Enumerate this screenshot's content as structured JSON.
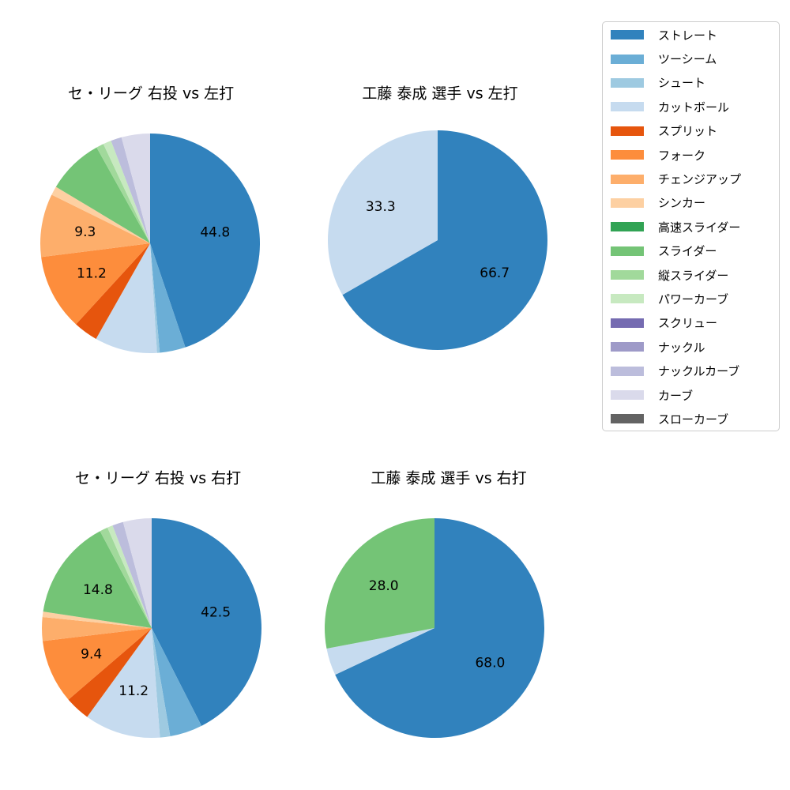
{
  "figure": {
    "background_color": "#ffffff",
    "text_color": "#000000"
  },
  "legend": {
    "position": "top-right",
    "border_color": "#cccccc",
    "items": [
      {
        "label": "ストレート",
        "color": "#3182bd"
      },
      {
        "label": "ツーシーム",
        "color": "#6baed6"
      },
      {
        "label": "シュート",
        "color": "#9ecae1"
      },
      {
        "label": "カットボール",
        "color": "#c6dbef"
      },
      {
        "label": "スプリット",
        "color": "#e6550d"
      },
      {
        "label": "フォーク",
        "color": "#fd8d3c"
      },
      {
        "label": "チェンジアップ",
        "color": "#fdae6b"
      },
      {
        "label": "シンカー",
        "color": "#fdd0a2"
      },
      {
        "label": "高速スライダー",
        "color": "#31a354"
      },
      {
        "label": "スライダー",
        "color": "#74c476"
      },
      {
        "label": "縦スライダー",
        "color": "#a1d99b"
      },
      {
        "label": "パワーカーブ",
        "color": "#c7e9c0"
      },
      {
        "label": "スクリュー",
        "color": "#756bb1"
      },
      {
        "label": "ナックル",
        "color": "#9e9ac8"
      },
      {
        "label": "ナックルカーブ",
        "color": "#bcbddc"
      },
      {
        "label": "カーブ",
        "color": "#dadaeb"
      },
      {
        "label": "スローカーブ",
        "color": "#636363"
      }
    ]
  },
  "chart_data": [
    {
      "type": "pie",
      "title": "セ・リーグ 右投 vs 左打",
      "start_angle_deg": 0,
      "direction": "clockwise",
      "pct_label_distance": 0.6,
      "slices": [
        {
          "pitch": "ストレート",
          "value": 44.8,
          "label": "44.8"
        },
        {
          "pitch": "ツーシーム",
          "value": 3.8,
          "label": null
        },
        {
          "pitch": "シュート",
          "value": 0.4,
          "label": null
        },
        {
          "pitch": "カットボール",
          "value": 9.2,
          "label": null
        },
        {
          "pitch": "スプリット",
          "value": 3.6,
          "label": null
        },
        {
          "pitch": "フォーク",
          "value": 11.2,
          "label": "11.2"
        },
        {
          "pitch": "チェンジアップ",
          "value": 9.3,
          "label": "9.3"
        },
        {
          "pitch": "シンカー",
          "value": 1.3,
          "label": null
        },
        {
          "pitch": "スライダー",
          "value": 8.3,
          "label": null
        },
        {
          "pitch": "縦スライダー",
          "value": 1.1,
          "label": null
        },
        {
          "pitch": "パワーカーブ",
          "value": 1.2,
          "label": null
        },
        {
          "pitch": "ナックルカーブ",
          "value": 1.6,
          "label": null
        },
        {
          "pitch": "カーブ",
          "value": 4.2,
          "label": null
        }
      ]
    },
    {
      "type": "pie",
      "title": "工藤 泰成 選手 vs 左打",
      "start_angle_deg": 0,
      "direction": "clockwise",
      "pct_label_distance": 0.6,
      "slices": [
        {
          "pitch": "ストレート",
          "value": 66.7,
          "label": "66.7"
        },
        {
          "pitch": "カットボール",
          "value": 33.3,
          "label": "33.3"
        }
      ]
    },
    {
      "type": "pie",
      "title": "セ・リーグ 右投 vs 右打",
      "start_angle_deg": 0,
      "direction": "clockwise",
      "pct_label_distance": 0.6,
      "slices": [
        {
          "pitch": "ストレート",
          "value": 42.5,
          "label": "42.5"
        },
        {
          "pitch": "ツーシーム",
          "value": 4.8,
          "label": null
        },
        {
          "pitch": "シュート",
          "value": 1.5,
          "label": null
        },
        {
          "pitch": "カットボール",
          "value": 11.2,
          "label": "11.2"
        },
        {
          "pitch": "スプリット",
          "value": 3.7,
          "label": null
        },
        {
          "pitch": "フォーク",
          "value": 9.4,
          "label": "9.4"
        },
        {
          "pitch": "チェンジアップ",
          "value": 3.5,
          "label": null
        },
        {
          "pitch": "シンカー",
          "value": 0.8,
          "label": null
        },
        {
          "pitch": "スライダー",
          "value": 14.8,
          "label": "14.8"
        },
        {
          "pitch": "縦スライダー",
          "value": 1.2,
          "label": null
        },
        {
          "pitch": "パワーカーブ",
          "value": 0.8,
          "label": null
        },
        {
          "pitch": "ナックルカーブ",
          "value": 1.6,
          "label": null
        },
        {
          "pitch": "カーブ",
          "value": 4.2,
          "label": null
        }
      ]
    },
    {
      "type": "pie",
      "title": "工藤 泰成 選手 vs 右打",
      "start_angle_deg": 0,
      "direction": "clockwise",
      "pct_label_distance": 0.6,
      "slices": [
        {
          "pitch": "ストレート",
          "value": 68.0,
          "label": "68.0"
        },
        {
          "pitch": "カットボール",
          "value": 4.0,
          "label": null
        },
        {
          "pitch": "スライダー",
          "value": 28.0,
          "label": "28.0"
        }
      ]
    }
  ]
}
